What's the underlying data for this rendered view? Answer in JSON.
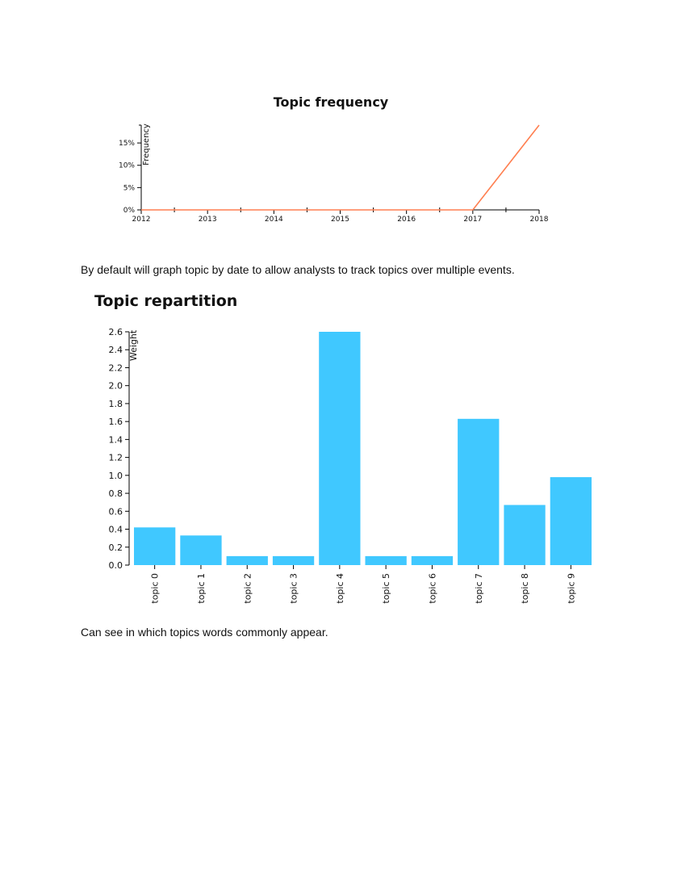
{
  "captions": {
    "frequency": "By default will graph topic by date to allow analysts to track topics over multiple events.",
    "repartition": "Can see in which topics words commonly appear."
  },
  "chart_data": [
    {
      "type": "line",
      "title": "Topic frequency",
      "ylabel": "Frequency",
      "xlabel": "",
      "x_ticks": [
        "2012",
        "2013",
        "2014",
        "2015",
        "2016",
        "2017",
        "2018"
      ],
      "y_ticks": [
        "0%",
        "5%",
        "10%",
        "15%"
      ],
      "ylim": [
        0,
        19
      ],
      "xlim": [
        2012,
        2018
      ],
      "series": [
        {
          "x": [
            2012,
            2017,
            2018
          ],
          "values": [
            0,
            0,
            19
          ],
          "color": "#ff7f50"
        }
      ],
      "grid": false
    },
    {
      "type": "bar",
      "title": "Topic repartition",
      "ylabel": "Weight",
      "xlabel": "",
      "categories": [
        "topic 0",
        "topic 1",
        "topic 2",
        "topic 3",
        "topic 4",
        "topic 5",
        "topic 6",
        "topic 7",
        "topic 8",
        "topic 9"
      ],
      "values": [
        0.42,
        0.33,
        0.1,
        0.1,
        2.6,
        0.1,
        0.1,
        1.63,
        0.67,
        0.98
      ],
      "y_ticks": [
        "0.0",
        "0.2",
        "0.4",
        "0.6",
        "0.8",
        "1.0",
        "1.2",
        "1.4",
        "1.6",
        "1.8",
        "2.0",
        "2.2",
        "2.4",
        "2.6"
      ],
      "ylim": [
        0,
        2.6
      ],
      "color": "#40c8ff",
      "grid": false
    }
  ]
}
